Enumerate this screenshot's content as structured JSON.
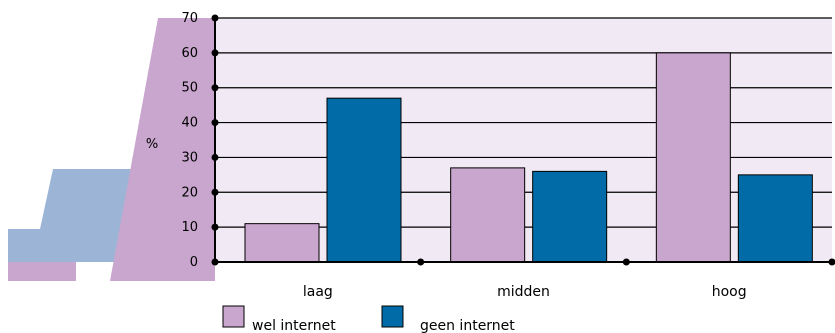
{
  "chart_data": {
    "type": "bar",
    "ylabel": "%",
    "ylim": [
      0,
      70
    ],
    "yticks": [
      "0",
      "10",
      "20",
      "30",
      "40",
      "50",
      "60",
      "70"
    ],
    "categories": [
      "laag",
      "midden",
      "hoog"
    ],
    "series": [
      {
        "name": "wel internet",
        "values": [
          11,
          27,
          60
        ]
      },
      {
        "name": "geen internet",
        "values": [
          47,
          26,
          25
        ]
      }
    ],
    "grid": true,
    "legend_position": "bottom"
  },
  "colors": {
    "plot_background": "#f1e9f3",
    "series_1": "#c9a6cd",
    "series_2": "#006ba6",
    "decor_pink": "#c9a6cd",
    "decor_blue": "#9cb5d6"
  }
}
